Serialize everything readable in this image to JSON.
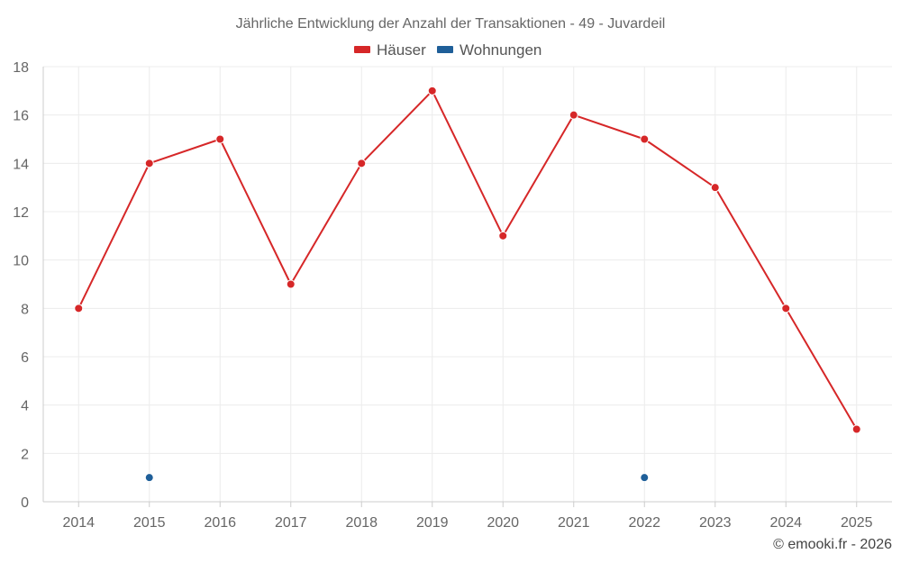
{
  "chart_data": {
    "type": "line",
    "title": "Jährliche Entwicklung der Anzahl der Transaktionen - 49 - Juvardeil",
    "x": [
      "2014",
      "2015",
      "2016",
      "2017",
      "2018",
      "2019",
      "2020",
      "2021",
      "2022",
      "2023",
      "2024",
      "2025"
    ],
    "ylim": [
      0,
      18
    ],
    "yticks": [
      0,
      2,
      4,
      6,
      8,
      10,
      12,
      14,
      16,
      18
    ],
    "grid": true,
    "legend_position": "top-center",
    "series": [
      {
        "name": "Häuser",
        "color": "#d62728",
        "values": [
          8,
          14,
          15,
          9,
          14,
          17,
          11,
          16,
          15,
          13,
          8,
          3
        ]
      },
      {
        "name": "Wohnungen",
        "color": "#1f5f99",
        "values": [
          null,
          1,
          null,
          null,
          null,
          null,
          null,
          null,
          1,
          null,
          null,
          null
        ]
      }
    ],
    "credit": "© emooki.fr - 2026"
  }
}
